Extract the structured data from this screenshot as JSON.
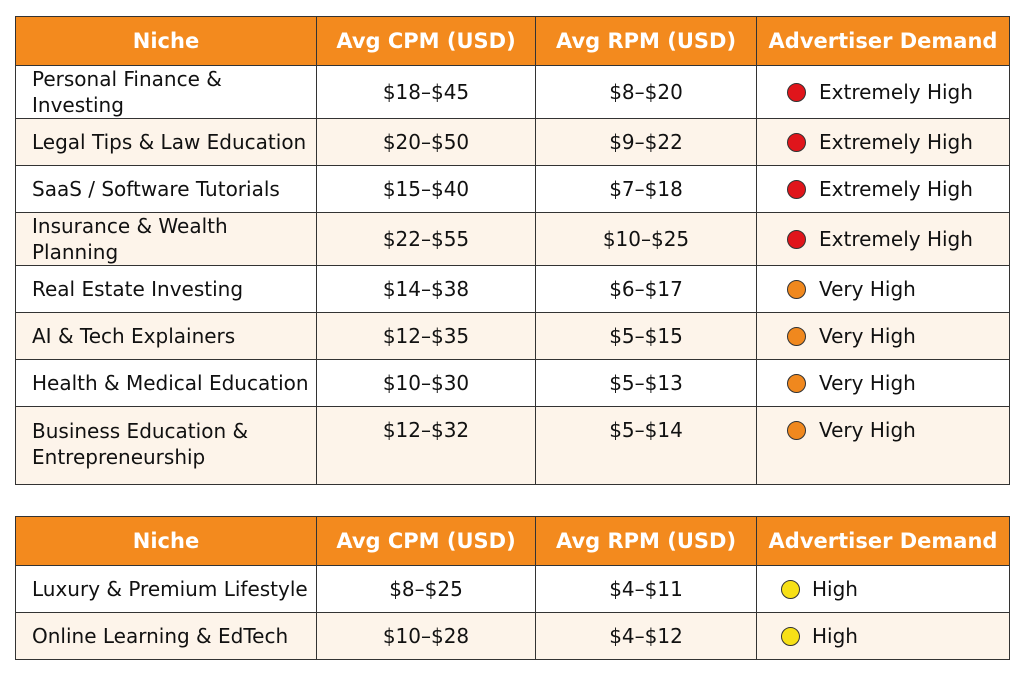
{
  "tables": [
    {
      "headers": [
        "Niche",
        "Avg CPM (USD)",
        "Avg RPM (USD)",
        "Advertiser Demand"
      ],
      "rows": [
        {
          "niche": "Personal Finance & Investing",
          "cpm": "$18–$45",
          "rpm": "$8–$20",
          "demand": "Extremely High",
          "color": "#e0151b"
        },
        {
          "niche": "Legal Tips & Law Education",
          "cpm": "$20–$50",
          "rpm": "$9–$22",
          "demand": "Extremely High",
          "color": "#e0151b"
        },
        {
          "niche": "SaaS / Software Tutorials",
          "cpm": "$15–$40",
          "rpm": "$7–$18",
          "demand": "Extremely High",
          "color": "#e0151b"
        },
        {
          "niche": "Insurance & Wealth Planning",
          "cpm": "$22–$55",
          "rpm": "$10–$25",
          "demand": "Extremely High",
          "color": "#e0151b"
        },
        {
          "niche": "Real Estate Investing",
          "cpm": "$14–$38",
          "rpm": "$6–$17",
          "demand": "Very High",
          "color": "#f0881e"
        },
        {
          "niche": "AI & Tech Explainers",
          "cpm": "$12–$35",
          "rpm": "$5–$15",
          "demand": "Very High",
          "color": "#f0881e"
        },
        {
          "niche": "Health & Medical Education",
          "cpm": "$10–$30",
          "rpm": "$5–$13",
          "demand": "Very High",
          "color": "#f0881e"
        },
        {
          "niche": "Business Education & Entrepreneurship",
          "cpm": "$12–$32",
          "rpm": "$5–$14",
          "demand": "Very High",
          "color": "#f0881e"
        }
      ]
    },
    {
      "headers": [
        "Niche",
        "Avg CPM (USD)",
        "Avg RPM (USD)",
        "Advertiser Demand"
      ],
      "rows": [
        {
          "niche": "Luxury & Premium Lifestyle",
          "cpm": "$8–$25",
          "rpm": "$4–$11",
          "demand": "High",
          "color": "#f7e017"
        },
        {
          "niche": "Online Learning & EdTech",
          "cpm": "$10–$28",
          "rpm": "$4–$12",
          "demand": "High",
          "color": "#f7e017"
        }
      ]
    }
  ],
  "colors": {
    "header_bg": "#f38a1e",
    "extremely_high": "#e0151b",
    "very_high": "#f0881e",
    "high": "#f7e017",
    "row_alt": "#fdf4ea"
  }
}
